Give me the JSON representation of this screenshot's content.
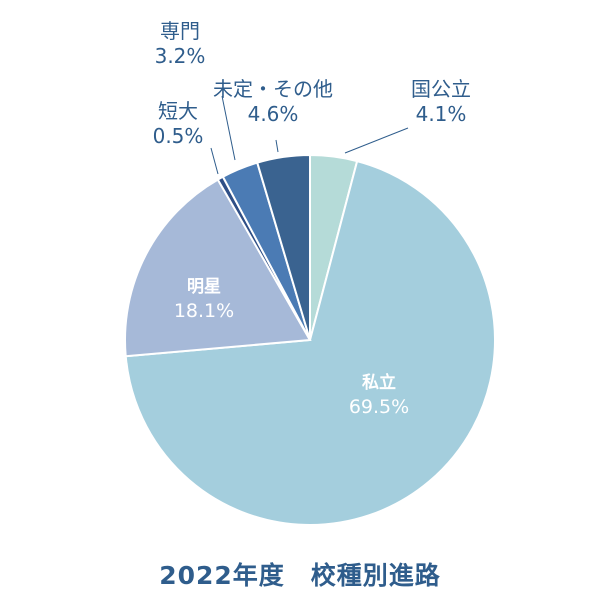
{
  "chart_data": {
    "type": "pie",
    "title": "2022年度　校種別進路",
    "slices": [
      {
        "label": "国公立",
        "value": 4.1,
        "value_text": "4.1%",
        "color": "#b5dbd8"
      },
      {
        "label": "私立",
        "value": 69.5,
        "value_text": "69.5%",
        "color": "#a4cedd"
      },
      {
        "label": "明星",
        "value": 18.1,
        "value_text": "18.1%",
        "color": "#a6b9d8"
      },
      {
        "label": "短大",
        "value": 0.5,
        "value_text": "0.5%",
        "color": "#2f4f86"
      },
      {
        "label": "専門",
        "value": 3.2,
        "value_text": "3.2%",
        "color": "#4b7bb4"
      },
      {
        "label": "未定・その他",
        "value": 4.6,
        "value_text": "4.6%",
        "color": "#3a6390"
      }
    ]
  }
}
